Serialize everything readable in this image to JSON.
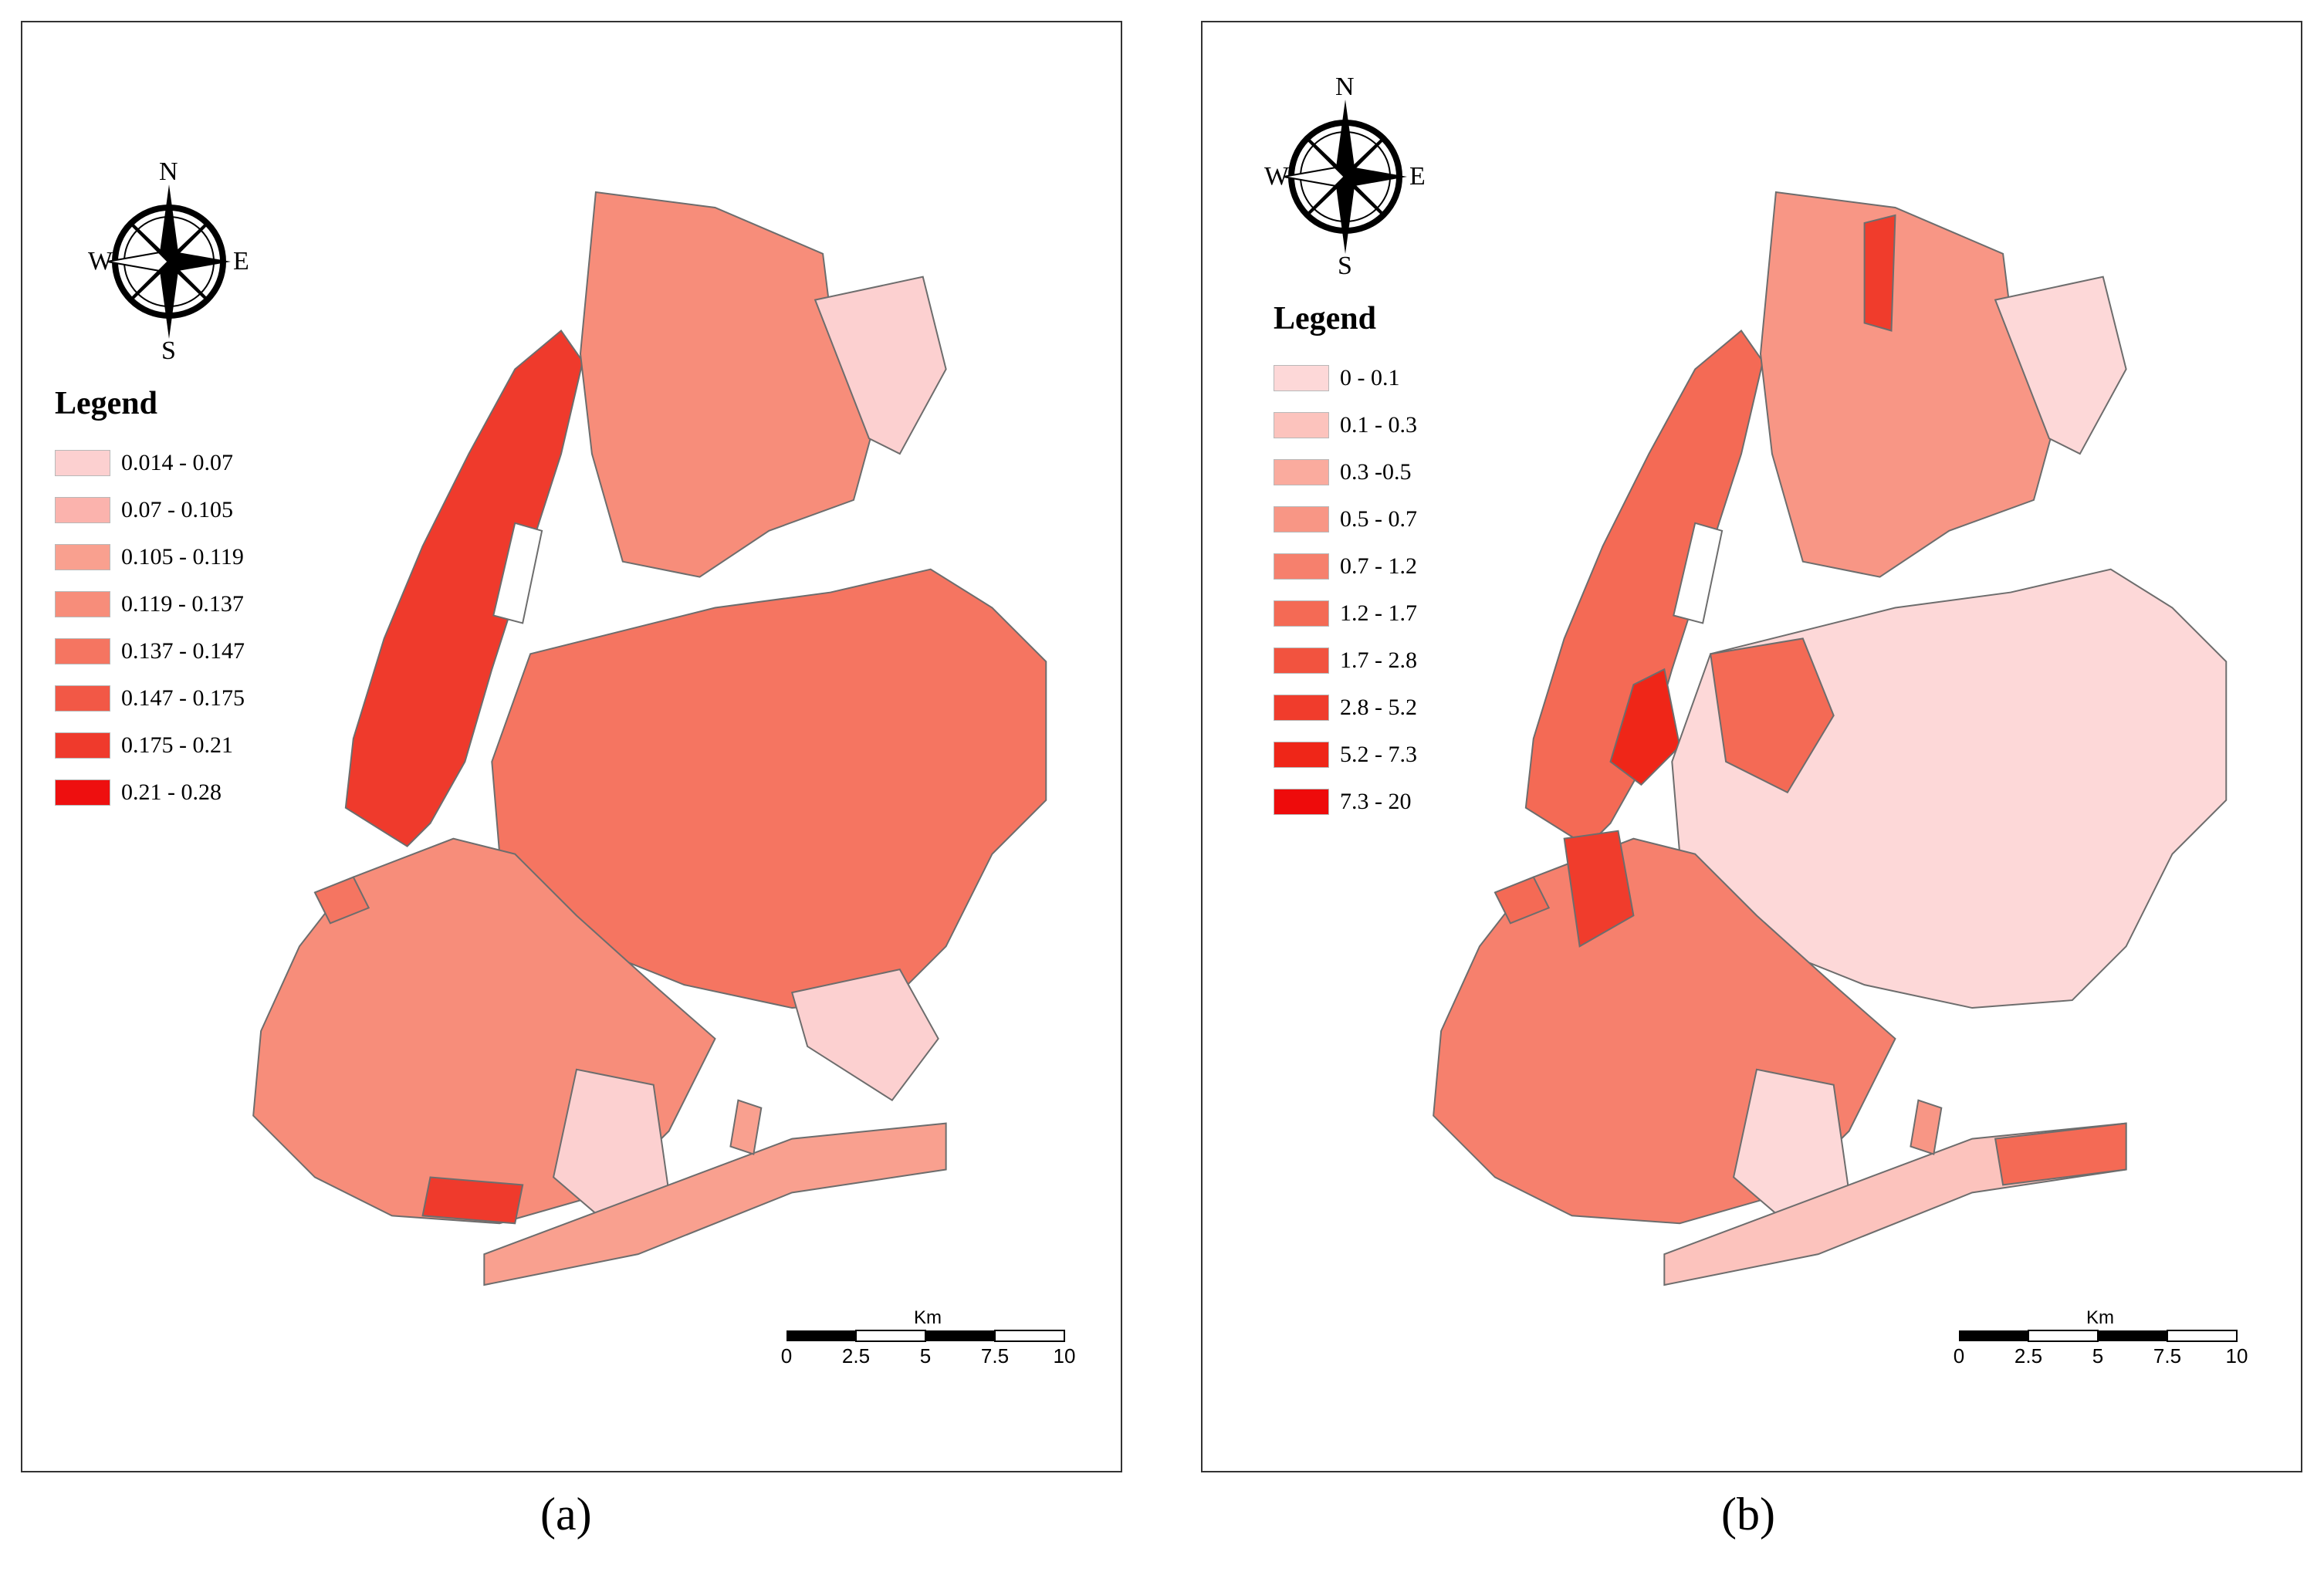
{
  "panels": [
    {
      "id": "a",
      "caption": "(a)",
      "legend": {
        "title": "Legend",
        "classes": [
          {
            "label": "0.014 - 0.07",
            "color": "#fcd0d0"
          },
          {
            "label": "0.07 - 0.105",
            "color": "#fbb3ad"
          },
          {
            "label": "0.105 - 0.119",
            "color": "#f9a08f"
          },
          {
            "label": "0.119 - 0.137",
            "color": "#f78d7a"
          },
          {
            "label": "0.137 - 0.147",
            "color": "#f57561"
          },
          {
            "label": "0.147 - 0.175",
            "color": "#f25846"
          },
          {
            "label": "0.175 - 0.21",
            "color": "#ef3a2c"
          },
          {
            "label": "0.21 - 0.28",
            "color": "#ee0f0f"
          }
        ]
      },
      "compass": {
        "n": "N",
        "s": "S",
        "e": "E",
        "w": "W"
      },
      "scale": {
        "unit": "Km",
        "ticks": [
          "0",
          "2.5",
          "5",
          "7.5",
          "10"
        ]
      }
    },
    {
      "id": "b",
      "caption": "(b)",
      "legend": {
        "title": "Legend",
        "classes": [
          {
            "label": "0 - 0.1",
            "color": "#fdd8d8"
          },
          {
            "label": "0.1 - 0.3",
            "color": "#fcc3bd"
          },
          {
            "label": "0.3 -0.5",
            "color": "#faab9e"
          },
          {
            "label": "0.5 - 0.7",
            "color": "#f89685"
          },
          {
            "label": "0.7 - 1.2",
            "color": "#f6806d"
          },
          {
            "label": "1.2 - 1.7",
            "color": "#f46a55"
          },
          {
            "label": "1.7 - 2.8",
            "color": "#f2533f"
          },
          {
            "label": "2.8 - 5.2",
            "color": "#f03c2c"
          },
          {
            "label": "5.2 - 7.3",
            "color": "#ef2618"
          },
          {
            "label": "7.3 - 20",
            "color": "#ee0b0b"
          }
        ]
      },
      "compass": {
        "n": "N",
        "s": "S",
        "e": "E",
        "w": "W"
      },
      "scale": {
        "unit": "Km",
        "ticks": [
          "0",
          "2.5",
          "5",
          "7.5",
          "10"
        ]
      }
    }
  ],
  "colors": {
    "boundary": "#6d6d6d",
    "frame": "#333333"
  }
}
